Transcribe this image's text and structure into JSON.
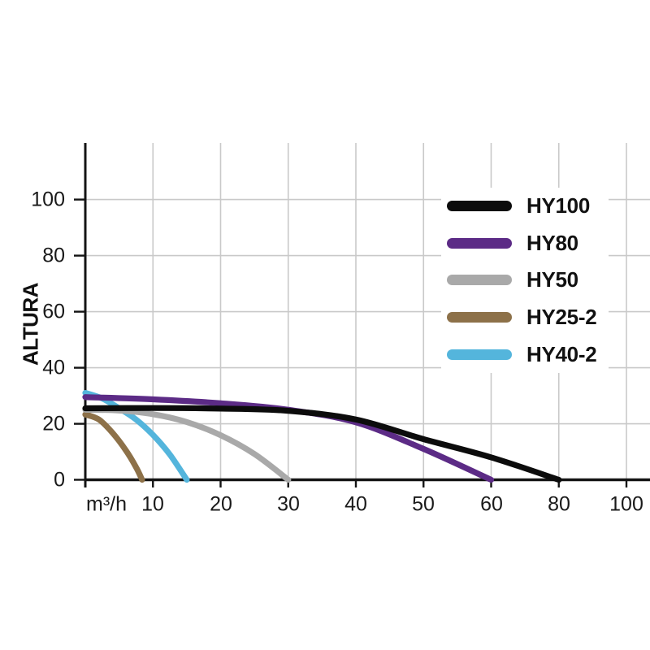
{
  "figure": {
    "background": "#ffffff",
    "grid_color": "#c9c9c9",
    "axis_color": "#141414",
    "text_color": "#1a1a1a"
  },
  "chart_data": {
    "type": "line",
    "title": "",
    "xlabel": "m³/h",
    "ylabel": "ALTURA",
    "grid": true,
    "legend_position": "upper right",
    "x_scale_note": "ticks evenly spaced; values step by 10 up to 60, then by 20 (80, 100)",
    "x_tick_values": [
      10,
      20,
      30,
      40,
      50,
      60,
      80,
      100
    ],
    "x_tick_labels": [
      "10",
      "20",
      "30",
      "40",
      "50",
      "60",
      "80",
      "100"
    ],
    "y_tick_values": [
      0,
      20,
      40,
      60,
      80,
      100
    ],
    "y_tick_labels": [
      "0",
      "20",
      "40",
      "60",
      "80",
      "100"
    ],
    "ylim": [
      0,
      120
    ],
    "series": [
      {
        "name": "HY100",
        "color": "#0c0c0c",
        "points": [
          [
            0,
            25.5
          ],
          [
            10,
            25.6
          ],
          [
            20,
            25.4
          ],
          [
            30,
            24.6
          ],
          [
            40,
            21.5
          ],
          [
            50,
            14.5
          ],
          [
            60,
            8
          ],
          [
            80,
            0
          ]
        ]
      },
      {
        "name": "HY80",
        "color": "#5c2b86",
        "points": [
          [
            0,
            29.5
          ],
          [
            10,
            28.7
          ],
          [
            20,
            27.3
          ],
          [
            30,
            25
          ],
          [
            40,
            20.5
          ],
          [
            50,
            11
          ],
          [
            60,
            0
          ]
        ]
      },
      {
        "name": "HY50",
        "color": "#a9a9a9",
        "points": [
          [
            0,
            25
          ],
          [
            5,
            24.7
          ],
          [
            10,
            23.4
          ],
          [
            15,
            20.6
          ],
          [
            20,
            15.9
          ],
          [
            25,
            9.2
          ],
          [
            30,
            0
          ]
        ]
      },
      {
        "name": "HY25-2",
        "color": "#8d7149",
        "points": [
          [
            0,
            23.3
          ],
          [
            2,
            21.5
          ],
          [
            4,
            16.8
          ],
          [
            6,
            10.5
          ],
          [
            7.5,
            4.5
          ],
          [
            8.4,
            0
          ]
        ]
      },
      {
        "name": "HY40-2",
        "color": "#54b5dc",
        "points": [
          [
            0,
            31
          ],
          [
            2.5,
            29
          ],
          [
            5,
            25.5
          ],
          [
            7.5,
            21.5
          ],
          [
            10,
            16
          ],
          [
            12.5,
            9
          ],
          [
            15,
            0
          ]
        ]
      }
    ]
  }
}
